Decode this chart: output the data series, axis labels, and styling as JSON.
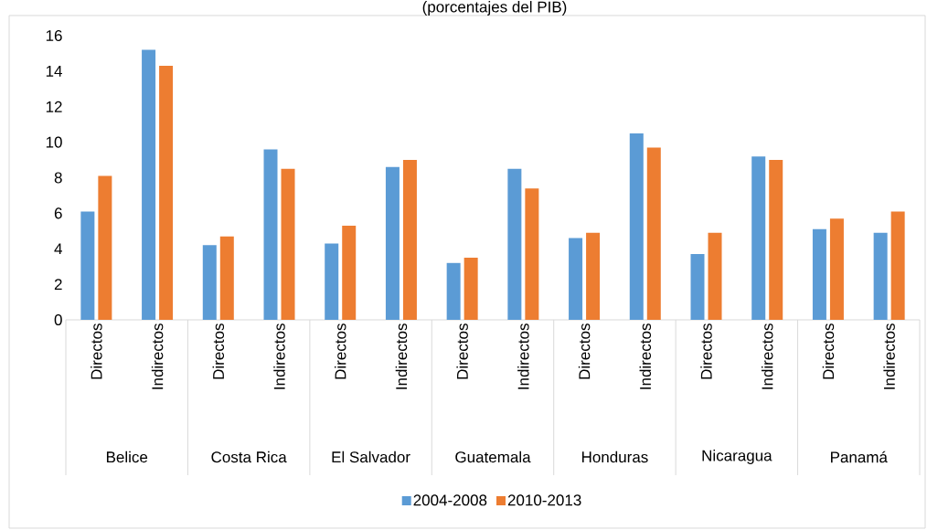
{
  "chart_data": {
    "type": "bar",
    "title": "(porcentajes del PIB)",
    "categories": [
      "Directos",
      "Indirectos",
      "Directos",
      "Indirectos",
      "Directos",
      "Indirectos",
      "Directos",
      "Indirectos",
      "Directos",
      "Indirectos",
      "Directos",
      "Indirectos",
      "Directos",
      "Indirectos"
    ],
    "series": [
      {
        "name": "2004-2008",
        "color": "#5b9bd5",
        "values": [
          6.1,
          15.2,
          4.2,
          9.6,
          4.3,
          8.6,
          3.2,
          8.5,
          4.6,
          10.5,
          3.7,
          9.2,
          5.1,
          4.9
        ]
      },
      {
        "name": "2010-2013",
        "color": "#ed7d31",
        "values": [
          8.1,
          14.3,
          4.7,
          8.5,
          5.3,
          9.0,
          3.5,
          7.4,
          4.9,
          9.7,
          4.9,
          9.0,
          5.7,
          6.1
        ]
      }
    ],
    "annotations": [
      "Belice",
      "Costa Rica",
      "El Salvador",
      "Guatemala",
      "Honduras",
      "Nicaragua",
      "Panamá"
    ],
    "ylim": [
      0,
      16
    ],
    "yticks": [
      0,
      2,
      4,
      6,
      8,
      10,
      12,
      14,
      16
    ],
    "grid": false,
    "legend": "bottom"
  }
}
